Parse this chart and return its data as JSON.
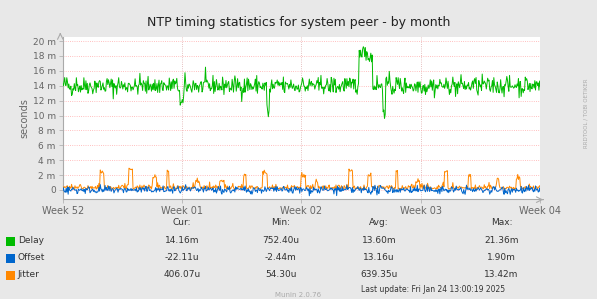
{
  "title": "NTP timing statistics for system peer - by month",
  "ylabel": "seconds",
  "background_color": "#e8e8e8",
  "plot_bg_color": "#ffffff",
  "grid_color_h": "#ffaaaa",
  "grid_color_v": "#ddaaaa",
  "text_color": "#666666",
  "x_tick_labels": [
    "Week 52",
    "Week 01",
    "Week 02",
    "Week 03",
    "Week 04"
  ],
  "y_tick_labels": [
    "0",
    "2 m",
    "4 m",
    "6 m",
    "8 m",
    "10 m",
    "12 m",
    "14 m",
    "16 m",
    "18 m",
    "20 m"
  ],
  "yticks": [
    0,
    0.002,
    0.004,
    0.006,
    0.008,
    0.01,
    0.012,
    0.014,
    0.016,
    0.018,
    0.02
  ],
  "delay_color": "#00bb00",
  "offset_color": "#0066cc",
  "jitter_color": "#ff8800",
  "legend_entries": [
    "Delay",
    "Offset",
    "Jitter"
  ],
  "stats_header": [
    "Cur:",
    "Min:",
    "Avg:",
    "Max:"
  ],
  "stats_delay": [
    "14.16m",
    "752.40u",
    "13.60m",
    "21.36m"
  ],
  "stats_offset": [
    "-22.11u",
    "-2.44m",
    "13.16u",
    "1.90m"
  ],
  "stats_jitter": [
    "406.07u",
    "54.30u",
    "639.35u",
    "13.42m"
  ],
  "last_update": "Last update: Fri Jan 24 13:00:19 2025",
  "munin_version": "Munin 2.0.76",
  "watermark": "RRDTOOL / TOBI OETIKER",
  "n_points": 700,
  "delay_base": 0.014,
  "ylim_max": 0.0205,
  "ylim_min": -0.0012
}
